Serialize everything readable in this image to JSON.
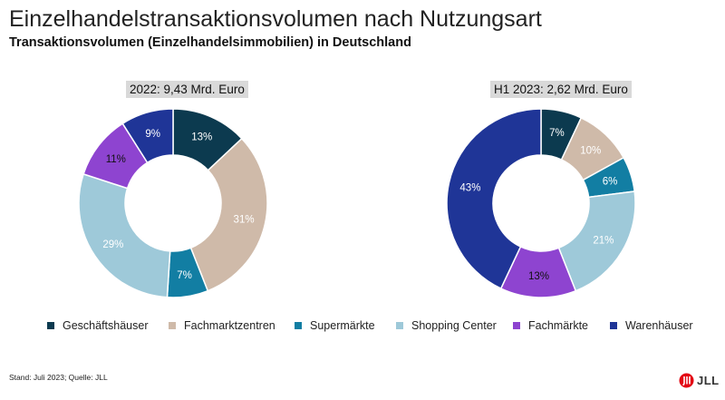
{
  "header": {
    "title": "Einzelhandelstransaktionsvolumen nach Nutzungsart",
    "subtitle": "Transaktionsvolumen (Einzelhandelsimmobilien) in Deutschland"
  },
  "chart_data": [
    {
      "type": "pie",
      "variant": "donut",
      "title": "2022: 9,43 Mrd. Euro",
      "categories": [
        "Geschäftshäuser",
        "Fachmarktzentren",
        "Supermärkte",
        "Shopping Center",
        "Fachmärkte",
        "Warenhäuser"
      ],
      "values": [
        13,
        31,
        7,
        29,
        11,
        9
      ],
      "data_labels": [
        "13%",
        "31%",
        "7%",
        "29%",
        "11%",
        "9%"
      ]
    },
    {
      "type": "pie",
      "variant": "donut",
      "title": "H1 2023: 2,62 Mrd. Euro",
      "categories": [
        "Geschäftshäuser",
        "Fachmarktzentren",
        "Supermärkte",
        "Shopping Center",
        "Fachmärkte",
        "Warenhäuser"
      ],
      "values": [
        7,
        10,
        6,
        21,
        13,
        43
      ],
      "data_labels": [
        "7%",
        "10%",
        "6%",
        "21%",
        "13%",
        "43%"
      ]
    }
  ],
  "legend": {
    "placement": "bottom",
    "items": [
      {
        "label": "Geschäftshäuser",
        "color": "#0c3a4f"
      },
      {
        "label": "Fachmarktzentren",
        "color": "#cfbaa9"
      },
      {
        "label": "Supermärkte",
        "color": "#127ea3"
      },
      {
        "label": "Shopping Center",
        "color": "#9ec9d9"
      },
      {
        "label": "Fachmärkte",
        "color": "#8e44d0"
      },
      {
        "label": "Warenhäuser",
        "color": "#1f3597"
      }
    ]
  },
  "label_colors": {
    "dark_segment": "#ffffff",
    "light_segment": "#ffffff",
    "purple_segment": "#111111"
  },
  "footer": {
    "source": "Stand: Juli 2023; Quelle: JLL",
    "logo_text": "JLL",
    "logo_icon": "jll-logo-icon",
    "logo_color": "#e30613"
  }
}
